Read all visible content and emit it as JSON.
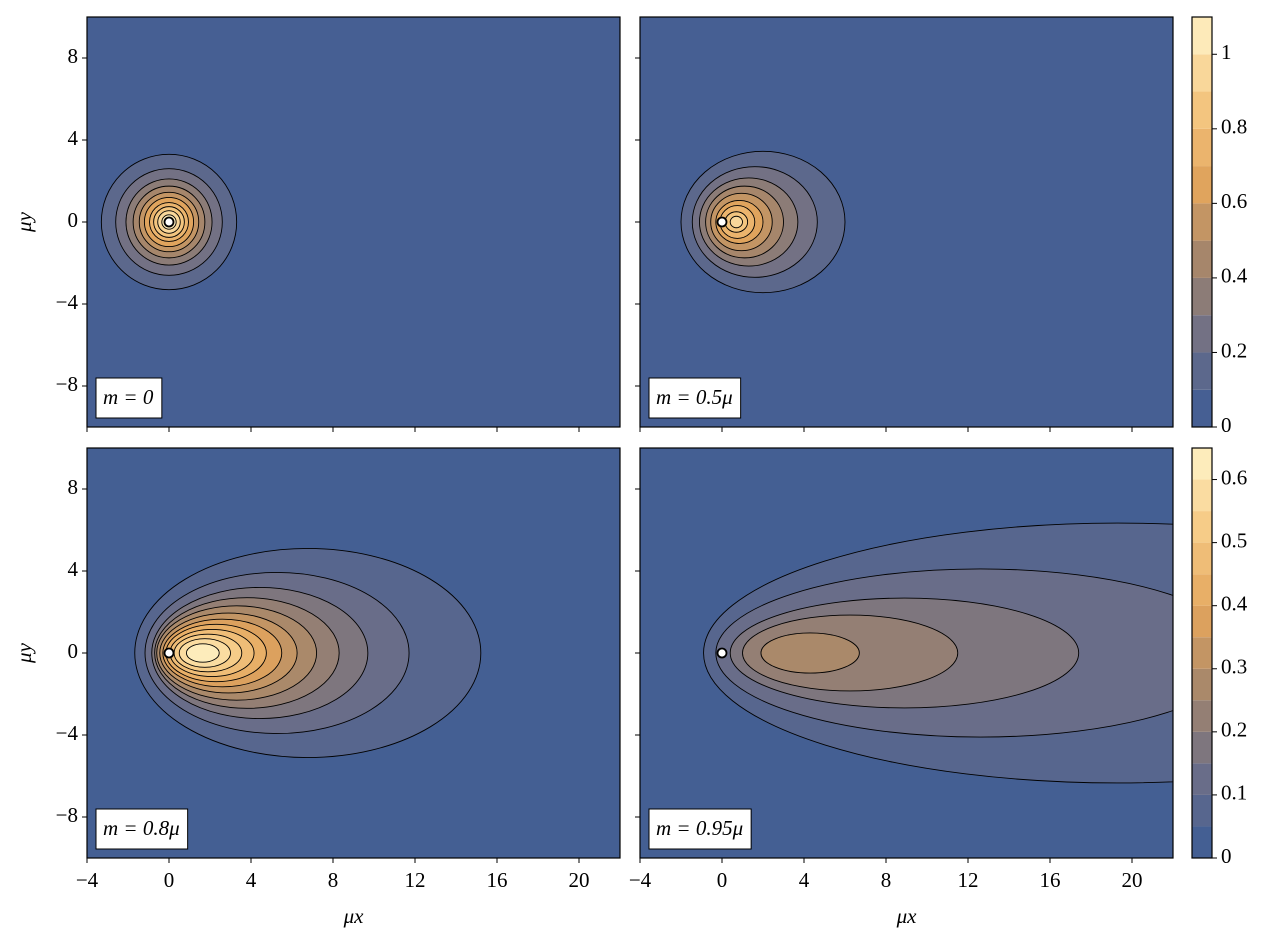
{
  "chart_data": [
    {
      "type": "contour",
      "annotation": "m = 0",
      "ylabel": "μy",
      "xlim": [
        -4,
        22
      ],
      "ylim": [
        -10,
        10
      ],
      "xticks": [
        -4,
        0,
        4,
        8,
        12,
        16,
        20
      ],
      "yticks": [
        {
          "value": -8,
          "label": "−8"
        },
        {
          "value": -4,
          "label": "−4"
        },
        0,
        4,
        8
      ],
      "levels": [
        0,
        0.1,
        0.2,
        0.3,
        0.4,
        0.5,
        0.6,
        0.7,
        0.8,
        0.9,
        1.0,
        1.1
      ],
      "colormap": [
        "#3b5b96",
        "#6b6e88",
        "#a3856c",
        "#e3a55c",
        "#f6ca85",
        "#fff4c8"
      ],
      "point": {
        "x": 0,
        "y": 0
      },
      "contours": [
        {
          "level": 0.1,
          "cx": 0,
          "rx": 3.3,
          "ry": 3.3
        },
        {
          "level": 0.2,
          "cx": 0,
          "rx": 2.6,
          "ry": 2.6
        },
        {
          "level": 0.3,
          "cx": 0,
          "rx": 2.1,
          "ry": 2.1
        },
        {
          "level": 0.4,
          "cx": 0,
          "rx": 1.75,
          "ry": 1.75
        },
        {
          "level": 0.5,
          "cx": 0,
          "rx": 1.45,
          "ry": 1.45
        },
        {
          "level": 0.6,
          "cx": 0,
          "rx": 1.2,
          "ry": 1.2
        },
        {
          "level": 0.7,
          "cx": 0,
          "rx": 0.95,
          "ry": 0.95
        },
        {
          "level": 0.8,
          "cx": 0,
          "rx": 0.75,
          "ry": 0.75
        },
        {
          "level": 0.9,
          "cx": 0,
          "rx": 0.55,
          "ry": 0.55
        },
        {
          "level": 1.0,
          "cx": 0,
          "rx": 0.35,
          "ry": 0.35
        }
      ]
    },
    {
      "type": "contour",
      "annotation": "m = 0.5μ",
      "xlim": [
        -4,
        22
      ],
      "ylim": [
        -10,
        10
      ],
      "xticks": [
        -4,
        0,
        4,
        8,
        12,
        16,
        20
      ],
      "yticks": [
        -8,
        -4,
        0,
        4,
        8
      ],
      "levels": [
        0,
        0.1,
        0.2,
        0.3,
        0.4,
        0.5,
        0.6,
        0.7,
        0.8,
        0.9,
        1.0,
        1.1
      ],
      "colorbar_ticks": [
        0,
        0.2,
        0.4,
        0.6,
        0.8,
        1
      ],
      "colormap": [
        "#3b5b96",
        "#6b6e88",
        "#a3856c",
        "#e3a55c",
        "#f6ca85",
        "#fff4c8"
      ],
      "point": {
        "x": 0,
        "y": 0
      },
      "contours": [
        {
          "level": 0.1,
          "cx": 2.0,
          "rx": 4.0,
          "ry": 3.45
        },
        {
          "level": 0.2,
          "cx": 1.6,
          "rx": 3.05,
          "ry": 2.7
        },
        {
          "level": 0.3,
          "cx": 1.3,
          "rx": 2.4,
          "ry": 2.15
        },
        {
          "level": 0.4,
          "cx": 1.1,
          "rx": 1.9,
          "ry": 1.75
        },
        {
          "level": 0.5,
          "cx": 0.95,
          "rx": 1.5,
          "ry": 1.4
        },
        {
          "level": 0.6,
          "cx": 0.85,
          "rx": 1.15,
          "ry": 1.05
        },
        {
          "level": 0.7,
          "cx": 0.75,
          "rx": 0.85,
          "ry": 0.8
        },
        {
          "level": 0.8,
          "cx": 0.7,
          "rx": 0.55,
          "ry": 0.5
        },
        {
          "level": 0.9,
          "cx": 0.7,
          "rx": 0.3,
          "ry": 0.28
        }
      ]
    },
    {
      "type": "contour",
      "annotation": "m = 0.8μ",
      "xlabel": "μx",
      "ylabel": "μy",
      "xlim": [
        -4,
        22
      ],
      "ylim": [
        -10,
        10
      ],
      "xticks": [
        {
          "value": -4,
          "label": "−4"
        },
        0,
        4,
        8,
        12,
        16,
        20
      ],
      "yticks": [
        {
          "value": -8,
          "label": "−8"
        },
        {
          "value": -4,
          "label": "−4"
        },
        0,
        4,
        8
      ],
      "levels": [
        0,
        0.05,
        0.1,
        0.15,
        0.2,
        0.25,
        0.3,
        0.35,
        0.4,
        0.45,
        0.5,
        0.55,
        0.6,
        0.65
      ],
      "colormap": [
        "#3b5b96",
        "#6b6e88",
        "#a3856c",
        "#e3a55c",
        "#f6ca85",
        "#fff4c8"
      ],
      "point": {
        "x": 0,
        "y": 0
      },
      "contours": [
        {
          "level": 0.05,
          "cx": 6.77,
          "rx": 8.44,
          "ry": 5.1
        },
        {
          "level": 0.1,
          "cx": 5.27,
          "rx": 6.44,
          "ry": 3.93
        },
        {
          "level": 0.15,
          "cx": 4.43,
          "rx": 5.27,
          "ry": 3.2
        },
        {
          "level": 0.2,
          "cx": 3.8,
          "rx": 4.5,
          "ry": 2.7
        },
        {
          "level": 0.25,
          "cx": 3.3,
          "rx": 3.9,
          "ry": 2.3
        },
        {
          "level": 0.3,
          "cx": 2.9,
          "rx": 3.35,
          "ry": 1.95
        },
        {
          "level": 0.35,
          "cx": 2.6,
          "rx": 2.9,
          "ry": 1.65
        },
        {
          "level": 0.4,
          "cx": 2.3,
          "rx": 2.45,
          "ry": 1.4
        },
        {
          "level": 0.45,
          "cx": 2.1,
          "rx": 2.05,
          "ry": 1.15
        },
        {
          "level": 0.5,
          "cx": 1.9,
          "rx": 1.65,
          "ry": 0.92
        },
        {
          "level": 0.55,
          "cx": 1.75,
          "rx": 1.25,
          "ry": 0.7
        },
        {
          "level": 0.6,
          "cx": 1.65,
          "rx": 0.8,
          "ry": 0.45
        }
      ]
    },
    {
      "type": "contour",
      "annotation": "m = 0.95μ",
      "xlabel": "μx",
      "xlim": [
        -4,
        22
      ],
      "ylim": [
        -10,
        10
      ],
      "xticks": [
        {
          "value": -4,
          "label": "−4"
        },
        0,
        4,
        8,
        12,
        16,
        20
      ],
      "yticks": [
        -8,
        -4,
        0,
        4,
        8
      ],
      "levels": [
        0,
        0.05,
        0.1,
        0.15,
        0.2,
        0.25,
        0.3,
        0.35,
        0.4,
        0.45,
        0.5,
        0.55,
        0.6,
        0.65
      ],
      "colorbar_ticks": [
        0,
        0.1,
        0.2,
        0.3,
        0.4,
        0.5,
        0.6
      ],
      "colormap": [
        "#3b5b96",
        "#6b6e88",
        "#a3856c",
        "#e3a55c",
        "#f6ca85",
        "#fff4c8"
      ],
      "point": {
        "x": 0,
        "y": 0
      },
      "contours": [
        {
          "level": 0.05,
          "cx": 19.3,
          "rx": 20.2,
          "ry": 6.34
        },
        {
          "level": 0.1,
          "cx": 12.6,
          "rx": 12.9,
          "ry": 4.1
        },
        {
          "level": 0.15,
          "cx": 8.9,
          "rx": 8.5,
          "ry": 2.68
        },
        {
          "level": 0.2,
          "cx": 6.25,
          "rx": 5.25,
          "ry": 1.85
        },
        {
          "level": 0.25,
          "cx": 4.3,
          "rx": 2.4,
          "ry": 0.98
        }
      ]
    }
  ]
}
